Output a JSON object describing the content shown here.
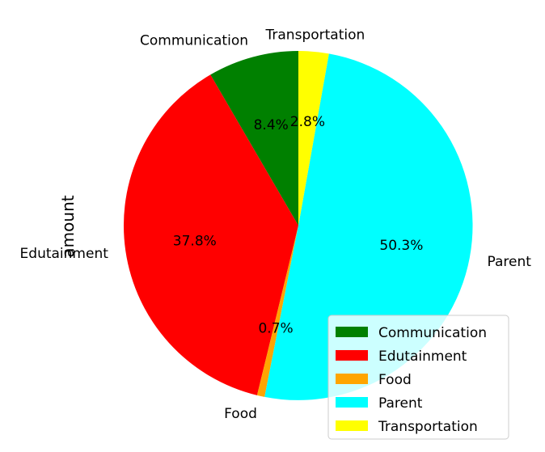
{
  "chart_data": {
    "type": "pie",
    "title": "",
    "ylabel": "amount",
    "categories": [
      "Communication",
      "Edutainment",
      "Food",
      "Parent",
      "Transportation"
    ],
    "values": [
      8.4,
      37.8,
      0.7,
      50.3,
      2.8
    ],
    "percent_labels": [
      "8.4%",
      "37.8%",
      "0.7%",
      "50.3%",
      "2.8%"
    ],
    "colors": [
      "#008000",
      "#ff0000",
      "#ffa500",
      "#00ffff",
      "#ffff00"
    ],
    "start_angle_deg": 90,
    "direction": "counterclockwise",
    "legend": {
      "position": "lower-right",
      "entries": [
        "Communication",
        "Edutainment",
        "Food",
        "Parent",
        "Transportation"
      ]
    }
  }
}
